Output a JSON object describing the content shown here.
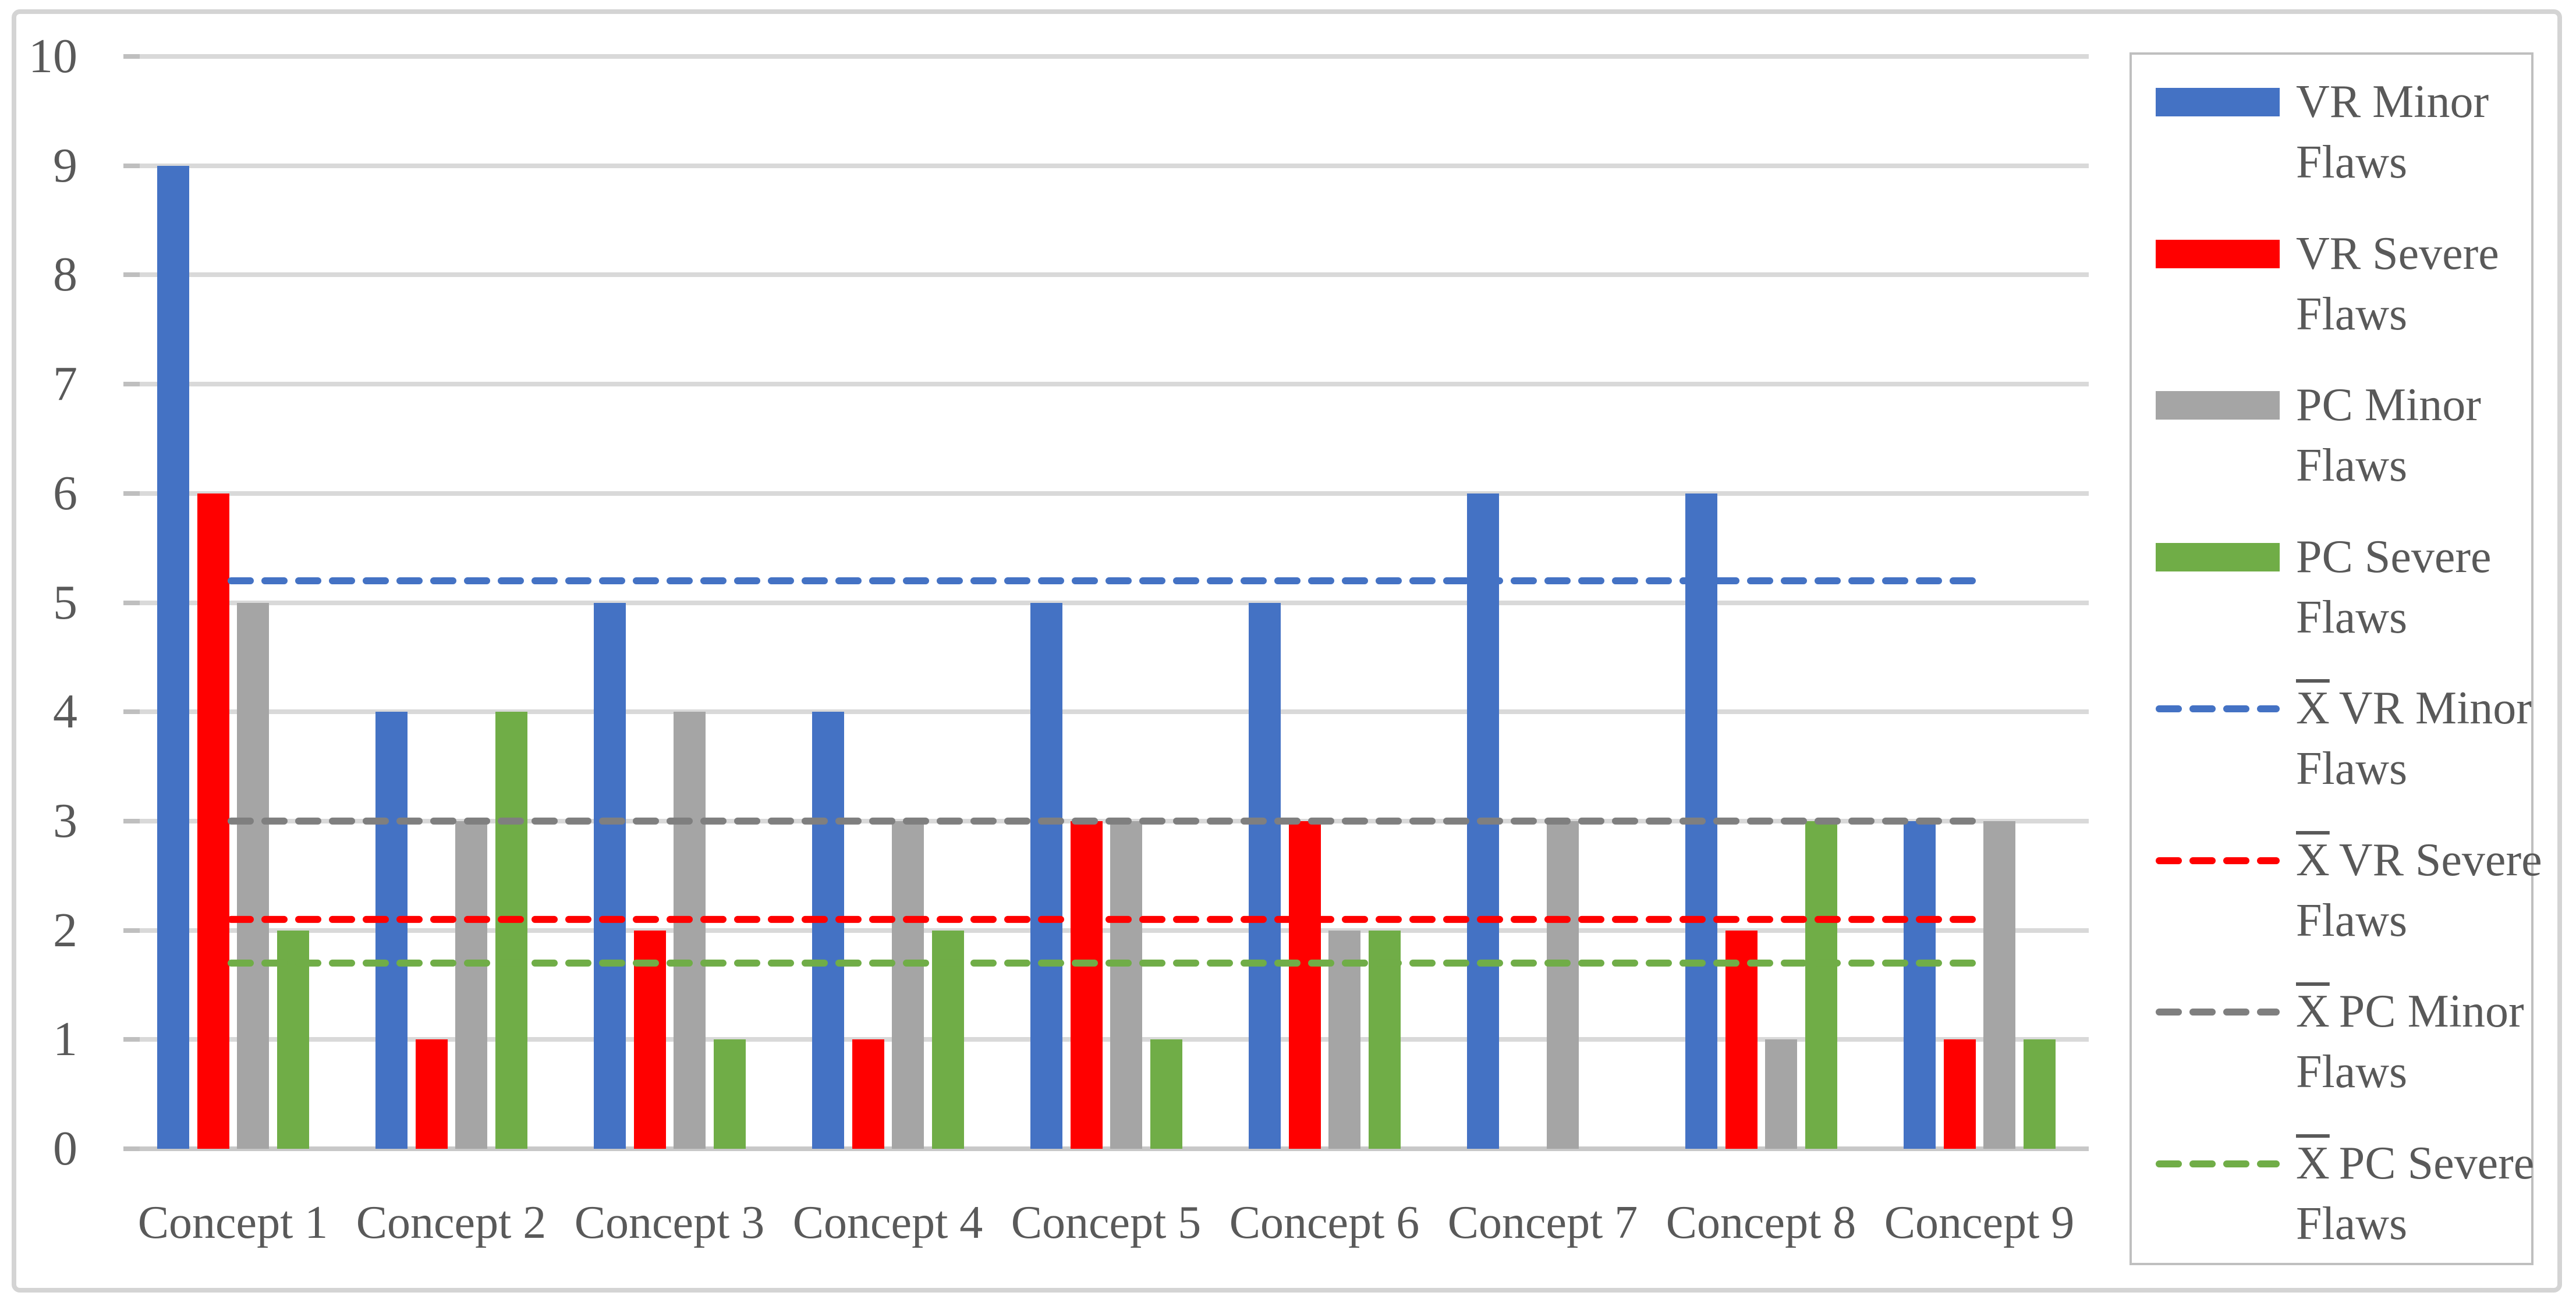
{
  "figure": {
    "background": "#ffffff",
    "border_color": "#d4d4d4",
    "text_color": "#595959",
    "gridline_color": "#d9d9d9",
    "axis_color": "#bfbfbf"
  },
  "chart_data": {
    "type": "bar",
    "title": "",
    "xlabel": "",
    "ylabel": "",
    "categories": [
      "Concept 1",
      "Concept 2",
      "Concept 3",
      "Concept 4",
      "Concept 5",
      "Concept 6",
      "Concept 7",
      "Concept 8",
      "Concept 9"
    ],
    "series": [
      {
        "name": "VR Minor Flaws",
        "color": "#4472c4",
        "values": [
          9,
          4,
          5,
          4,
          5,
          5,
          6,
          6,
          3
        ]
      },
      {
        "name": "VR Severe Flaws",
        "color": "#ff0000",
        "values": [
          6,
          1,
          2,
          1,
          3,
          3,
          0,
          2,
          1
        ]
      },
      {
        "name": "PC Minor Flaws",
        "color": "#a5a5a5",
        "values": [
          5,
          3,
          4,
          3,
          3,
          2,
          3,
          1,
          3
        ]
      },
      {
        "name": "PC Severe Flaws",
        "color": "#70ad47",
        "values": [
          2,
          4,
          1,
          2,
          1,
          2,
          0,
          3,
          1
        ]
      }
    ],
    "mean_lines": [
      {
        "name": "X̄ VR Minor Flaws",
        "color": "#4472c4",
        "value": 5.2
      },
      {
        "name": "X̄ VR Severe Flaws",
        "color": "#ff0000",
        "value": 2.1
      },
      {
        "name": "X̄ PC Minor Flaws",
        "color": "#7f7f7f",
        "value": 3.0
      },
      {
        "name": "X̄ PC Severe Flaws",
        "color": "#70ad47",
        "value": 1.7
      }
    ],
    "ylim": [
      0,
      10
    ],
    "yticks": [
      "0",
      "1",
      "2",
      "3",
      "4",
      "5",
      "6",
      "7",
      "8",
      "9",
      "10"
    ],
    "grid": true,
    "legend_position": "right"
  },
  "legend": {
    "items": [
      {
        "marker": "swatch",
        "color": "#4472c4",
        "prefix": "",
        "line1": "VR Minor",
        "line2": "Flaws"
      },
      {
        "marker": "swatch",
        "color": "#ff0000",
        "prefix": "",
        "line1": "VR Severe",
        "line2": "Flaws"
      },
      {
        "marker": "swatch",
        "color": "#a5a5a5",
        "prefix": "",
        "line1": "PC Minor",
        "line2": "Flaws"
      },
      {
        "marker": "swatch",
        "color": "#70ad47",
        "prefix": "",
        "line1": "PC Severe",
        "line2": "Flaws"
      },
      {
        "marker": "dashed-line",
        "color": "#4472c4",
        "prefix": "X",
        "line1": "VR Minor",
        "line2": "Flaws"
      },
      {
        "marker": "dashed-line",
        "color": "#ff0000",
        "prefix": "X",
        "line1": "VR Severe",
        "line2": "Flaws"
      },
      {
        "marker": "dashed-line",
        "color": "#7f7f7f",
        "prefix": "X",
        "line1": "PC Minor",
        "line2": "Flaws"
      },
      {
        "marker": "dashed-line",
        "color": "#70ad47",
        "prefix": "X",
        "line1": "PC Severe",
        "line2": "Flaws"
      }
    ]
  }
}
